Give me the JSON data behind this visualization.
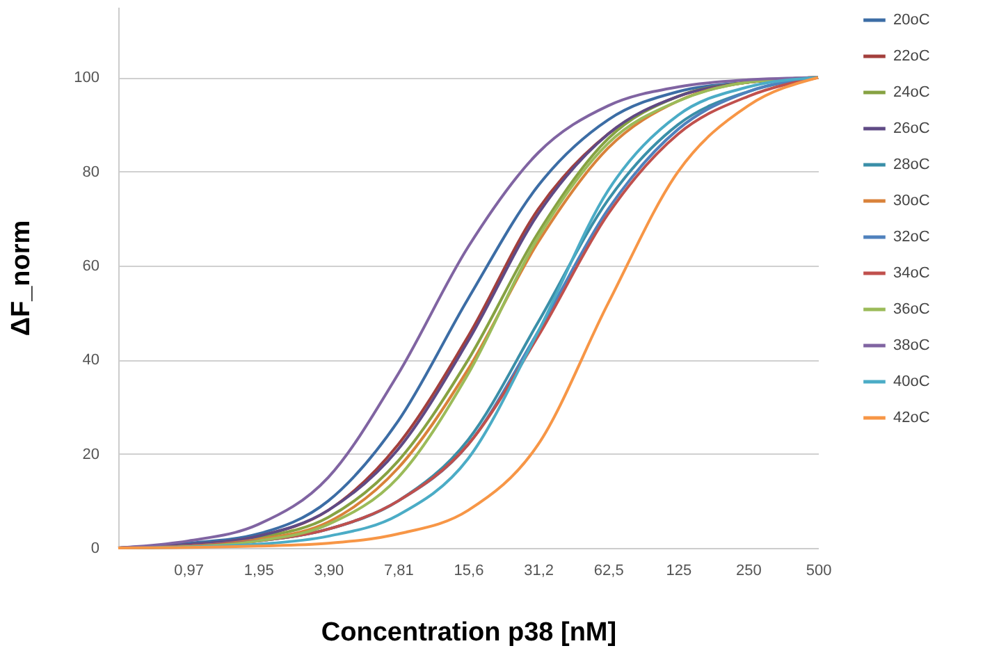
{
  "chart_data": {
    "type": "line",
    "xlabel": "Concentration p38 [nM]",
    "ylabel": "ΔF_norm",
    "categories": [
      null,
      "0,97",
      "1,95",
      "3,90",
      "7,81",
      "15,6",
      "31,2",
      "62,5",
      "125",
      "250",
      "500"
    ],
    "ylim": [
      0,
      115
    ],
    "yticks": [
      0,
      20,
      40,
      60,
      80,
      100
    ],
    "grid": "y",
    "legend": "right",
    "marker": "none",
    "line_style": "solid",
    "series": [
      {
        "name": "20oC",
        "color": "#3c6da5",
        "values": [
          0,
          1,
          3,
          10,
          27,
          53,
          77,
          91,
          97,
          99,
          100
        ]
      },
      {
        "name": "22oC",
        "color": "#a33f3c",
        "values": [
          0,
          0.7,
          2.5,
          8,
          22,
          45,
          72,
          88,
          96,
          99,
          100
        ]
      },
      {
        "name": "24oC",
        "color": "#86a242",
        "values": [
          0,
          0.6,
          2.2,
          6.5,
          18.5,
          40,
          67,
          87,
          96,
          99,
          100
        ]
      },
      {
        "name": "26oC",
        "color": "#5f4a85",
        "values": [
          0,
          0.7,
          2.5,
          8,
          21,
          44,
          71,
          88,
          96,
          99,
          100
        ]
      },
      {
        "name": "28oC",
        "color": "#3a8fa8",
        "values": [
          0,
          0.4,
          1.5,
          4,
          10,
          23,
          48,
          74,
          90,
          97,
          100
        ]
      },
      {
        "name": "30oC",
        "color": "#d9823a",
        "values": [
          0,
          0.4,
          1.8,
          5.5,
          17,
          38,
          65,
          85,
          95,
          99,
          100
        ]
      },
      {
        "name": "32oC",
        "color": "#4f81bd",
        "values": [
          0,
          0.4,
          1.5,
          4,
          10,
          22,
          46,
          72,
          89,
          97,
          100
        ]
      },
      {
        "name": "34oC",
        "color": "#c0504d",
        "values": [
          0,
          0.4,
          1.5,
          4,
          10,
          22,
          45,
          71,
          88,
          96,
          100
        ]
      },
      {
        "name": "36oC",
        "color": "#9bbb59",
        "values": [
          0,
          0.3,
          1.5,
          5,
          15,
          37,
          66,
          86,
          95,
          99,
          100
        ]
      },
      {
        "name": "38oC",
        "color": "#8064a2",
        "values": [
          0,
          1.5,
          5,
          15,
          37,
          64,
          84,
          94,
          98,
          99.5,
          100
        ]
      },
      {
        "name": "40oC",
        "color": "#4bacc6",
        "values": [
          0,
          0.2,
          0.8,
          2.5,
          7,
          19,
          46,
          76,
          92,
          98,
          100
        ]
      },
      {
        "name": "42oC",
        "color": "#f79646",
        "values": [
          0,
          0.1,
          0.4,
          1,
          3,
          8,
          22,
          52,
          80,
          94,
          100
        ]
      }
    ]
  }
}
